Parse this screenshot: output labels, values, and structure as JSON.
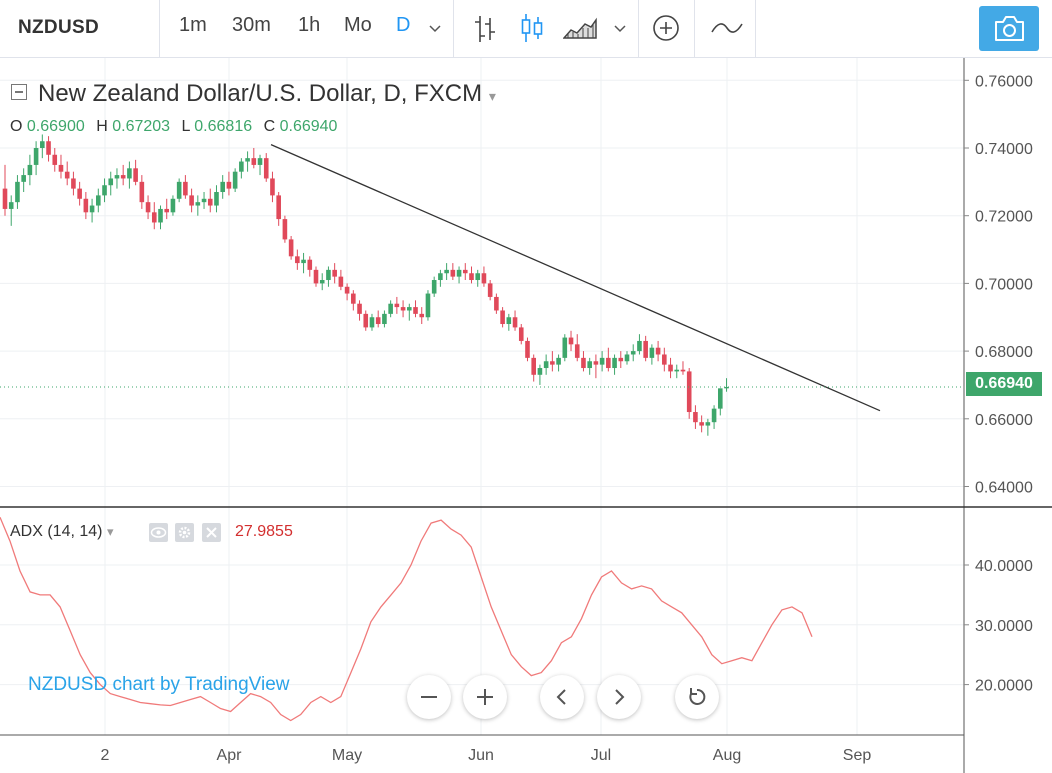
{
  "toolbar": {
    "symbol": "NZDUSD",
    "intervals": [
      {
        "label": "1m",
        "active": false
      },
      {
        "label": "30m",
        "active": false
      },
      {
        "label": "1h",
        "active": false
      },
      {
        "label": "Mo",
        "active": false
      },
      {
        "label": "D",
        "active": true
      }
    ],
    "icons": [
      "chevron-down-icon",
      "bar-chart-icon",
      "candlestick-icon",
      "area-chart-icon",
      "chevron-down-icon",
      "add-indicator-icon",
      "compare-icon",
      "camera-icon"
    ]
  },
  "legend": {
    "title": "New Zealand Dollar/U.S. Dollar, D, FXCM",
    "open_label": "O",
    "open": "0.66900",
    "high_label": "H",
    "high": "0.67203",
    "low_label": "L",
    "low": "0.66816",
    "close_label": "C",
    "close": "0.66940"
  },
  "adx": {
    "label": "ADX (14, 14)",
    "value": "27.9855"
  },
  "watermark": "NZDUSD chart by TradingView",
  "colors": {
    "up": "#3ea66b",
    "down": "#e0495a",
    "accent": "#2196f3",
    "adx_line": "#f07a7a",
    "trendline": "#333333"
  },
  "chart_data": [
    {
      "type": "candlestick",
      "title": "New Zealand Dollar/U.S. Dollar, D, FXCM",
      "last_price_label": "0.66940",
      "last_price": 0.6694,
      "x_ticks": [
        "2",
        "Apr",
        "May",
        "Jun",
        "Jul",
        "Aug",
        "Sep"
      ],
      "y_ticks": [
        "0.76000",
        "0.74000",
        "0.72000",
        "0.70000",
        "0.68000",
        "0.66000",
        "0.64000"
      ],
      "ylim": [
        0.632,
        0.765
      ],
      "grid": true,
      "trendline": {
        "from": {
          "x": "Apr 13",
          "y": 0.741
        },
        "to": {
          "x": "Sep 12",
          "y": 0.6624
        }
      },
      "series": [
        {
          "name": "NZDUSD",
          "ohlc": [
            [
              0.728,
              0.735,
              0.72,
              0.722
            ],
            [
              0.722,
              0.726,
              0.717,
              0.724
            ],
            [
              0.724,
              0.732,
              0.722,
              0.73
            ],
            [
              0.73,
              0.734,
              0.727,
              0.732
            ],
            [
              0.732,
              0.738,
              0.729,
              0.735
            ],
            [
              0.735,
              0.742,
              0.732,
              0.74
            ],
            [
              0.74,
              0.744,
              0.737,
              0.742
            ],
            [
              0.742,
              0.7435,
              0.736,
              0.738
            ],
            [
              0.738,
              0.74,
              0.733,
              0.735
            ],
            [
              0.735,
              0.738,
              0.731,
              0.733
            ],
            [
              0.733,
              0.736,
              0.729,
              0.731
            ],
            [
              0.731,
              0.733,
              0.726,
              0.728
            ],
            [
              0.728,
              0.73,
              0.723,
              0.725
            ],
            [
              0.725,
              0.727,
              0.719,
              0.721
            ],
            [
              0.721,
              0.725,
              0.718,
              0.723
            ],
            [
              0.723,
              0.728,
              0.721,
              0.726
            ],
            [
              0.726,
              0.731,
              0.724,
              0.729
            ],
            [
              0.729,
              0.733,
              0.726,
              0.731
            ],
            [
              0.731,
              0.734,
              0.728,
              0.732
            ],
            [
              0.732,
              0.735,
              0.729,
              0.731
            ],
            [
              0.731,
              0.736,
              0.728,
              0.734
            ],
            [
              0.734,
              0.7365,
              0.729,
              0.73
            ],
            [
              0.73,
              0.732,
              0.722,
              0.724
            ],
            [
              0.724,
              0.726,
              0.719,
              0.721
            ],
            [
              0.721,
              0.724,
              0.716,
              0.718
            ],
            [
              0.718,
              0.723,
              0.716,
              0.722
            ],
            [
              0.722,
              0.725,
              0.719,
              0.721
            ],
            [
              0.721,
              0.726,
              0.72,
              0.725
            ],
            [
              0.725,
              0.731,
              0.724,
              0.73
            ],
            [
              0.73,
              0.732,
              0.725,
              0.726
            ],
            [
              0.726,
              0.728,
              0.721,
              0.723
            ],
            [
              0.723,
              0.726,
              0.72,
              0.724
            ],
            [
              0.724,
              0.727,
              0.722,
              0.725
            ],
            [
              0.725,
              0.728,
              0.721,
              0.723
            ],
            [
              0.723,
              0.729,
              0.721,
              0.727
            ],
            [
              0.727,
              0.732,
              0.725,
              0.73
            ],
            [
              0.73,
              0.733,
              0.726,
              0.728
            ],
            [
              0.728,
              0.734,
              0.727,
              0.733
            ],
            [
              0.733,
              0.737,
              0.731,
              0.736
            ],
            [
              0.736,
              0.739,
              0.733,
              0.737
            ],
            [
              0.737,
              0.74,
              0.734,
              0.735
            ],
            [
              0.735,
              0.738,
              0.732,
              0.737
            ],
            [
              0.737,
              0.7385,
              0.73,
              0.731
            ],
            [
              0.731,
              0.733,
              0.724,
              0.726
            ],
            [
              0.726,
              0.727,
              0.717,
              0.719
            ],
            [
              0.719,
              0.72,
              0.712,
              0.713
            ],
            [
              0.713,
              0.714,
              0.707,
              0.708
            ],
            [
              0.708,
              0.71,
              0.704,
              0.706
            ],
            [
              0.706,
              0.709,
              0.703,
              0.707
            ],
            [
              0.707,
              0.708,
              0.702,
              0.704
            ],
            [
              0.704,
              0.705,
              0.699,
              0.7
            ],
            [
              0.7,
              0.703,
              0.698,
              0.701
            ],
            [
              0.701,
              0.705,
              0.699,
              0.704
            ],
            [
              0.704,
              0.706,
              0.7,
              0.702
            ],
            [
              0.702,
              0.704,
              0.698,
              0.699
            ],
            [
              0.699,
              0.7,
              0.695,
              0.697
            ],
            [
              0.697,
              0.698,
              0.692,
              0.694
            ],
            [
              0.694,
              0.695,
              0.689,
              0.691
            ],
            [
              0.691,
              0.692,
              0.686,
              0.687
            ],
            [
              0.687,
              0.691,
              0.686,
              0.69
            ],
            [
              0.69,
              0.692,
              0.687,
              0.688
            ],
            [
              0.688,
              0.692,
              0.687,
              0.691
            ],
            [
              0.691,
              0.695,
              0.69,
              0.694
            ],
            [
              0.694,
              0.696,
              0.691,
              0.693
            ],
            [
              0.693,
              0.695,
              0.69,
              0.692
            ],
            [
              0.692,
              0.694,
              0.689,
              0.693
            ],
            [
              0.693,
              0.695,
              0.69,
              0.691
            ],
            [
              0.691,
              0.693,
              0.688,
              0.69
            ],
            [
              0.69,
              0.698,
              0.689,
              0.697
            ],
            [
              0.697,
              0.702,
              0.696,
              0.701
            ],
            [
              0.701,
              0.704,
              0.699,
              0.703
            ],
            [
              0.703,
              0.706,
              0.701,
              0.704
            ],
            [
              0.704,
              0.706,
              0.701,
              0.702
            ],
            [
              0.702,
              0.705,
              0.7,
              0.704
            ],
            [
              0.704,
              0.706,
              0.701,
              0.703
            ],
            [
              0.703,
              0.705,
              0.7,
              0.701
            ],
            [
              0.701,
              0.704,
              0.699,
              0.703
            ],
            [
              0.703,
              0.705,
              0.699,
              0.7
            ],
            [
              0.7,
              0.701,
              0.695,
              0.696
            ],
            [
              0.696,
              0.697,
              0.691,
              0.692
            ],
            [
              0.692,
              0.693,
              0.687,
              0.688
            ],
            [
              0.688,
              0.691,
              0.686,
              0.69
            ],
            [
              0.69,
              0.692,
              0.686,
              0.687
            ],
            [
              0.687,
              0.688,
              0.682,
              0.683
            ],
            [
              0.683,
              0.684,
              0.677,
              0.678
            ],
            [
              0.678,
              0.679,
              0.671,
              0.673
            ],
            [
              0.673,
              0.676,
              0.67,
              0.675
            ],
            [
              0.675,
              0.679,
              0.673,
              0.677
            ],
            [
              0.677,
              0.68,
              0.674,
              0.676
            ],
            [
              0.676,
              0.679,
              0.674,
              0.678
            ],
            [
              0.678,
              0.685,
              0.677,
              0.684
            ],
            [
              0.684,
              0.686,
              0.68,
              0.682
            ],
            [
              0.682,
              0.685,
              0.677,
              0.678
            ],
            [
              0.678,
              0.68,
              0.674,
              0.675
            ],
            [
              0.675,
              0.678,
              0.673,
              0.677
            ],
            [
              0.677,
              0.679,
              0.672,
              0.676
            ],
            [
              0.676,
              0.68,
              0.674,
              0.678
            ],
            [
              0.678,
              0.681,
              0.674,
              0.675
            ],
            [
              0.675,
              0.679,
              0.673,
              0.678
            ],
            [
              0.678,
              0.68,
              0.675,
              0.677
            ],
            [
              0.677,
              0.68,
              0.676,
              0.679
            ],
            [
              0.679,
              0.682,
              0.677,
              0.68
            ],
            [
              0.68,
              0.685,
              0.679,
              0.683
            ],
            [
              0.683,
              0.6845,
              0.677,
              0.678
            ],
            [
              0.678,
              0.682,
              0.676,
              0.681
            ],
            [
              0.681,
              0.683,
              0.677,
              0.679
            ],
            [
              0.679,
              0.681,
              0.674,
              0.676
            ],
            [
              0.676,
              0.678,
              0.672,
              0.674
            ],
            [
              0.674,
              0.676,
              0.672,
              0.6745
            ],
            [
              0.6745,
              0.677,
              0.673,
              0.674
            ],
            [
              0.674,
              0.675,
              0.66,
              0.662
            ],
            [
              0.662,
              0.664,
              0.657,
              0.659
            ],
            [
              0.659,
              0.661,
              0.656,
              0.658
            ],
            [
              0.658,
              0.66,
              0.655,
              0.659
            ],
            [
              0.659,
              0.664,
              0.657,
              0.663
            ],
            [
              0.663,
              0.669,
              0.661,
              0.669
            ],
            [
              0.669,
              0.672,
              0.668,
              0.6694
            ]
          ]
        }
      ]
    },
    {
      "type": "line",
      "title": "ADX (14, 14)",
      "y_ticks": [
        "40.0000",
        "30.0000",
        "20.0000"
      ],
      "ylim": [
        11.5,
        49.5
      ],
      "grid": true,
      "series": [
        {
          "name": "ADX",
          "values": [
            48,
            44,
            39,
            35.5,
            35,
            35,
            33,
            29,
            25,
            22,
            20,
            18.5,
            18,
            17.5,
            17,
            16.8,
            16.6,
            16.5,
            17,
            17.5,
            18,
            17,
            16,
            15.5,
            17,
            18.5,
            18,
            17,
            15,
            14,
            15,
            17,
            18,
            17,
            18,
            22,
            26,
            30.5,
            33,
            35,
            37,
            40,
            44,
            47,
            47.5,
            46,
            45,
            43,
            38,
            33,
            29,
            25,
            23,
            21.5,
            22,
            24,
            27,
            28,
            31,
            35,
            38,
            39,
            37,
            36,
            36.5,
            36,
            34,
            33,
            32,
            30,
            28,
            25,
            23.5,
            24,
            24.5,
            24,
            27,
            30,
            32.5,
            33,
            32,
            28
          ]
        }
      ]
    }
  ]
}
